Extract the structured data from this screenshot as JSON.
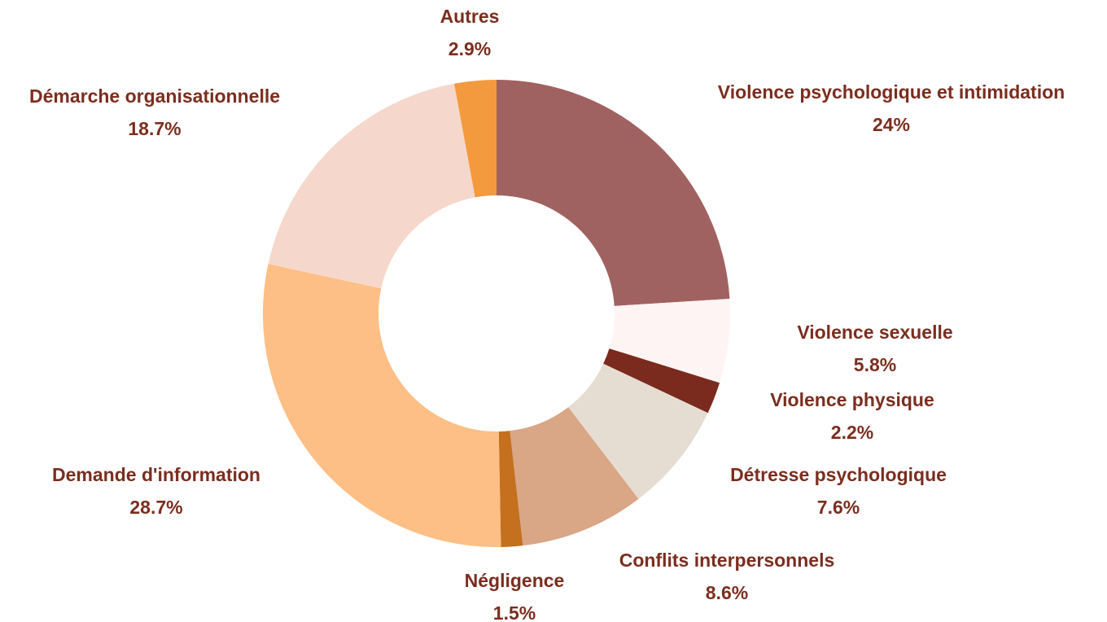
{
  "chart_data": {
    "type": "donut",
    "categories": [
      "Violence psychologique et intimidation",
      "Violence sexuelle",
      "Violence physique",
      "Détresse psychologique",
      "Conflits interpersonnels",
      "Négligence",
      "Demande d'information",
      "Démarche organisationnelle",
      "Autres"
    ],
    "values": [
      24,
      5.8,
      2.2,
      7.6,
      8.6,
      1.5,
      28.7,
      18.7,
      2.9
    ],
    "value_labels": [
      "24%",
      "5.8%",
      "2.2%",
      "7.6%",
      "8.6%",
      "1.5%",
      "28.7%",
      "18.7%",
      "2.9%"
    ],
    "colors": [
      "#a06260",
      "#fff4f4",
      "#7a2b1d",
      "#e6ddd2",
      "#d9a686",
      "#c4701e",
      "#fdbf85",
      "#f5d8cb",
      "#f49a3e"
    ]
  }
}
